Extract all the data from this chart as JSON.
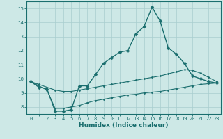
{
  "xlabel": "Humidex (Indice chaleur)",
  "xlim": [
    -0.5,
    23.5
  ],
  "ylim": [
    7.5,
    15.5
  ],
  "yticks": [
    8,
    9,
    10,
    11,
    12,
    13,
    14,
    15
  ],
  "xticks": [
    0,
    1,
    2,
    3,
    4,
    5,
    6,
    7,
    8,
    9,
    10,
    11,
    12,
    13,
    14,
    15,
    16,
    17,
    18,
    19,
    20,
    21,
    22,
    23
  ],
  "background_color": "#cde8e6",
  "grid_color": "#a8cece",
  "line_color": "#1a6e6e",
  "series": [
    {
      "x": [
        0,
        1,
        2,
        3,
        4,
        5,
        6,
        7,
        8,
        9,
        10,
        11,
        12,
        13,
        14,
        15,
        16,
        17,
        18,
        19,
        20,
        21,
        22,
        23
      ],
      "y": [
        9.8,
        9.4,
        9.3,
        7.7,
        7.7,
        7.8,
        9.5,
        9.5,
        10.3,
        11.1,
        11.5,
        11.9,
        12.0,
        13.2,
        13.7,
        15.1,
        14.1,
        12.2,
        11.75,
        11.1,
        10.2,
        10.0,
        9.8,
        9.7
      ],
      "marker": "D",
      "markersize": 2.5,
      "linewidth": 1.0
    },
    {
      "x": [
        0,
        1,
        2,
        3,
        4,
        5,
        6,
        7,
        8,
        9,
        10,
        11,
        12,
        13,
        14,
        15,
        16,
        17,
        18,
        19,
        20,
        21,
        22,
        23
      ],
      "y": [
        9.8,
        9.6,
        9.4,
        9.2,
        9.1,
        9.1,
        9.2,
        9.3,
        9.4,
        9.5,
        9.6,
        9.7,
        9.8,
        9.9,
        10.0,
        10.1,
        10.2,
        10.35,
        10.5,
        10.65,
        10.6,
        10.4,
        10.1,
        9.8
      ],
      "marker": "D",
      "markersize": 1.5,
      "linewidth": 0.8
    },
    {
      "x": [
        0,
        1,
        2,
        3,
        4,
        5,
        6,
        7,
        8,
        9,
        10,
        11,
        12,
        13,
        14,
        15,
        16,
        17,
        18,
        19,
        20,
        21,
        22,
        23
      ],
      "y": [
        9.8,
        9.5,
        9.2,
        7.9,
        7.9,
        8.0,
        8.1,
        8.3,
        8.45,
        8.55,
        8.65,
        8.75,
        8.85,
        8.9,
        9.0,
        9.05,
        9.1,
        9.2,
        9.3,
        9.4,
        9.5,
        9.6,
        9.65,
        9.7
      ],
      "marker": "D",
      "markersize": 1.5,
      "linewidth": 0.8
    }
  ]
}
